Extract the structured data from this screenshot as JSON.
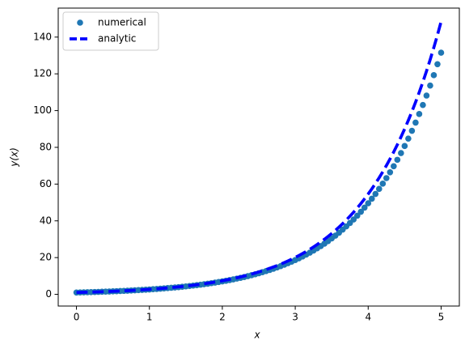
{
  "chart_data": {
    "type": "line",
    "xlabel": "x",
    "ylabel": "y(x)",
    "x": [
      0,
      0.05,
      0.1,
      0.15,
      0.2,
      0.25,
      0.3,
      0.35,
      0.4,
      0.45,
      0.5,
      0.55,
      0.6,
      0.65,
      0.7,
      0.75,
      0.8,
      0.85,
      0.9,
      0.95,
      1,
      1.05,
      1.1,
      1.15,
      1.2,
      1.25,
      1.3,
      1.35,
      1.4,
      1.45,
      1.5,
      1.55,
      1.6,
      1.65,
      1.7,
      1.75,
      1.8,
      1.85,
      1.9,
      1.95,
      2,
      2.05,
      2.1,
      2.15,
      2.2,
      2.25,
      2.3,
      2.35,
      2.4,
      2.45,
      2.5,
      2.55,
      2.6,
      2.65,
      2.7,
      2.75,
      2.8,
      2.85,
      2.9,
      2.95,
      3,
      3.05,
      3.1,
      3.15,
      3.2,
      3.25,
      3.3,
      3.35,
      3.4,
      3.45,
      3.5,
      3.55,
      3.6,
      3.65,
      3.7,
      3.75,
      3.8,
      3.85,
      3.9,
      3.95,
      4,
      4.05,
      4.1,
      4.15,
      4.2,
      4.25,
      4.3,
      4.35,
      4.4,
      4.45,
      4.5,
      4.55,
      4.6,
      4.65,
      4.7,
      4.75,
      4.8,
      4.85,
      4.9,
      4.95,
      5
    ],
    "series": [
      {
        "name": "numerical",
        "color": "#1f77b4",
        "mode": "markers",
        "values": [
          1,
          1.05,
          1.1,
          1.16,
          1.22,
          1.28,
          1.34,
          1.41,
          1.48,
          1.55,
          1.63,
          1.71,
          1.8,
          1.89,
          1.98,
          2.08,
          2.18,
          2.29,
          2.41,
          2.53,
          2.65,
          2.79,
          2.93,
          3.07,
          3.23,
          3.39,
          3.56,
          3.73,
          3.92,
          4.12,
          4.32,
          4.54,
          4.76,
          5,
          5.25,
          5.52,
          5.79,
          6.08,
          6.39,
          6.7,
          7.04,
          7.39,
          7.76,
          8.15,
          8.56,
          8.99,
          9.43,
          9.91,
          10.4,
          10.92,
          11.47,
          12.04,
          12.64,
          13.27,
          13.94,
          14.64,
          15.37,
          16.14,
          16.94,
          17.79,
          18.68,
          19.61,
          20.59,
          21.62,
          22.7,
          23.84,
          25.03,
          26.28,
          27.6,
          28.98,
          30.43,
          31.95,
          33.55,
          35.22,
          36.98,
          38.83,
          40.77,
          42.81,
          44.95,
          47.2,
          49.56,
          52.04,
          54.64,
          57.37,
          60.24,
          63.25,
          66.42,
          69.74,
          73.22,
          76.89,
          80.73,
          84.77,
          89.01,
          93.46,
          98.13,
          103.03,
          108.19,
          113.6,
          119.28,
          125.24,
          131.5
        ]
      },
      {
        "name": "analytic",
        "color": "#0000ff",
        "mode": "line",
        "linestyle": "dashed",
        "values": [
          1,
          1.05,
          1.11,
          1.16,
          1.22,
          1.28,
          1.35,
          1.42,
          1.49,
          1.57,
          1.65,
          1.73,
          1.82,
          1.92,
          2.01,
          2.12,
          2.23,
          2.34,
          2.46,
          2.59,
          2.72,
          2.86,
          3,
          3.16,
          3.32,
          3.49,
          3.67,
          3.86,
          4.06,
          4.26,
          4.48,
          4.71,
          4.95,
          5.21,
          5.47,
          5.75,
          6.05,
          6.36,
          6.69,
          7.03,
          7.39,
          7.77,
          8.17,
          8.58,
          9.03,
          9.49,
          9.97,
          10.49,
          11.02,
          11.59,
          12.18,
          12.81,
          13.46,
          14.15,
          14.88,
          15.64,
          16.44,
          17.29,
          18.17,
          19.11,
          20.09,
          21.12,
          22.2,
          23.34,
          24.53,
          25.79,
          27.11,
          28.5,
          29.96,
          31.5,
          33.12,
          34.81,
          36.6,
          38.47,
          40.45,
          42.52,
          44.7,
          46.99,
          49.4,
          51.94,
          54.6,
          57.4,
          60.34,
          63.43,
          66.69,
          70.11,
          73.7,
          77.48,
          81.45,
          85.63,
          90.02,
          94.63,
          99.48,
          104.59,
          109.95,
          115.58,
          121.51,
          127.74,
          134.29,
          141.17,
          148.41
        ]
      }
    ],
    "xlim": [
      -0.25,
      5.25
    ],
    "xticks": [
      0,
      1,
      2,
      3,
      4,
      5
    ],
    "ylim": [
      -6.37,
      155.78
    ],
    "yticks": [
      0,
      20,
      40,
      60,
      80,
      100,
      120,
      140
    ],
    "legend": "upper left"
  }
}
